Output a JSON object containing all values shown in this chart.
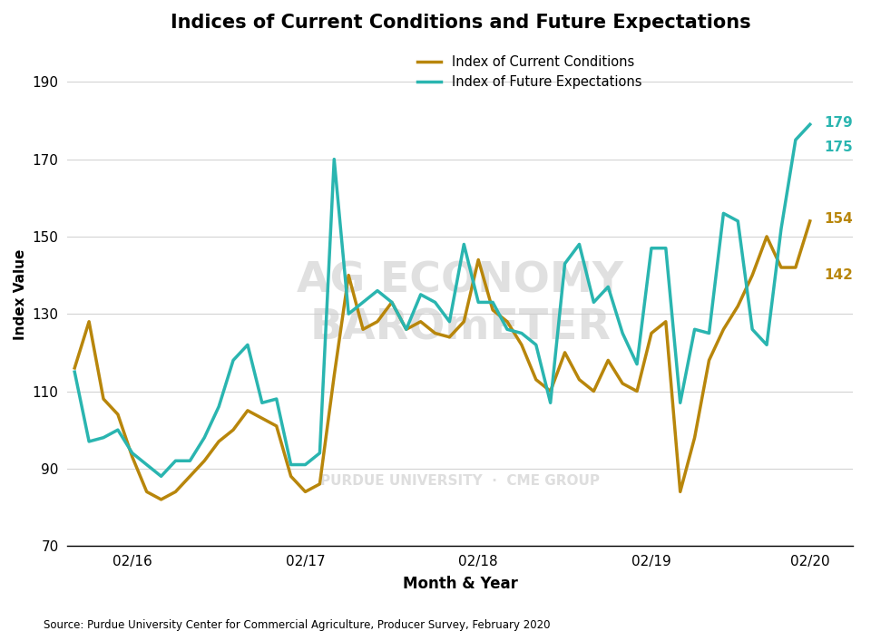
{
  "title": "Indices of Current Conditions and Future Expectations",
  "ylabel": "Index Value",
  "xlabel": "Month & Year",
  "source": "Source: Purdue University Center for Commercial Agriculture, Producer Survey, February 2020",
  "ylim": [
    70,
    200
  ],
  "yticks": [
    70,
    90,
    110,
    130,
    150,
    170,
    190
  ],
  "xtick_labels": [
    "02/16",
    "02/17",
    "02/18",
    "02/19",
    "02/20"
  ],
  "color_current": "#b8860b",
  "color_future": "#2ab5b0",
  "line_width": 2.5,
  "current_conditions": [
    116,
    128,
    108,
    104,
    93,
    84,
    82,
    84,
    88,
    92,
    97,
    100,
    105,
    103,
    101,
    88,
    84,
    86,
    114,
    140,
    126,
    128,
    133,
    126,
    128,
    125,
    124,
    128,
    144,
    131,
    128,
    122,
    113,
    110,
    120,
    113,
    110,
    118,
    112,
    110,
    125,
    128,
    84,
    98,
    118,
    126,
    132,
    140,
    150,
    142,
    142,
    154
  ],
  "future_expectations": [
    115,
    97,
    98,
    100,
    94,
    91,
    88,
    92,
    92,
    98,
    106,
    118,
    122,
    107,
    108,
    91,
    91,
    94,
    170,
    130,
    133,
    136,
    133,
    126,
    135,
    133,
    128,
    148,
    133,
    133,
    126,
    125,
    122,
    107,
    143,
    148,
    133,
    137,
    125,
    117,
    147,
    147,
    107,
    126,
    125,
    156,
    154,
    126,
    122,
    152,
    175,
    179
  ],
  "annotations": {
    "current_penultimate": 142,
    "current_last": 154,
    "future_penultimate": 175,
    "future_last": 179
  }
}
